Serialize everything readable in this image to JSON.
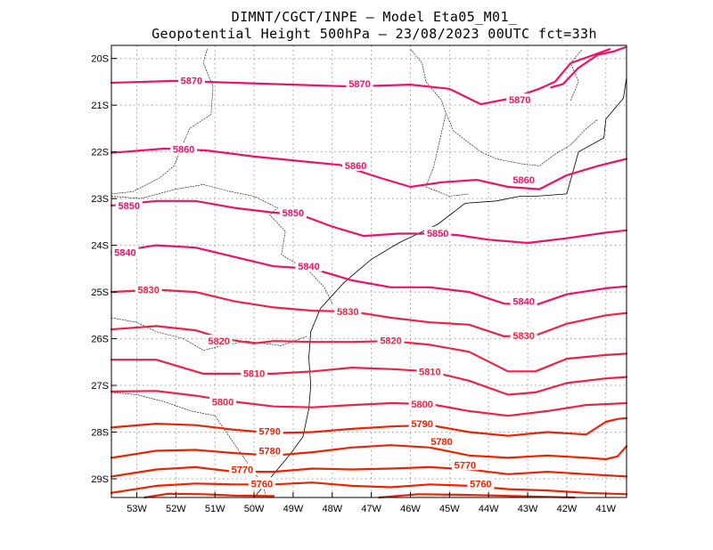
{
  "title": {
    "line1": "DIMNT/CGCT/INPE –  Model Eta05_M01_",
    "line2": "Geopotential Height 500hPa –  23/08/2023 00UTC fct=33h"
  },
  "map": {
    "lon_range": [
      -53.65,
      -40.47
    ],
    "lat_range": [
      -29.4,
      -19.72
    ],
    "lon_ticks": [
      "53W",
      "52W",
      "51W",
      "50W",
      "49W",
      "48W",
      "47W",
      "46W",
      "45W",
      "44W",
      "43W",
      "42W",
      "41W"
    ],
    "lat_ticks": [
      "20S",
      "21S",
      "22S",
      "23S",
      "24S",
      "25S",
      "26S",
      "27S",
      "28S",
      "29S"
    ],
    "colors": {
      "high": "#ee1166",
      "mid": "#ee2244",
      "low": "#ee2200",
      "coast": "#000000",
      "grid": "#999999"
    }
  },
  "contours": [
    {
      "value": 5870,
      "label": "5870",
      "color": "#ee1166",
      "points": [
        [
          -53.65,
          -20.52
        ],
        [
          -52,
          -20.48
        ],
        [
          -50.5,
          -20.52
        ],
        [
          -49,
          -20.56
        ],
        [
          -47.5,
          -20.6
        ],
        [
          -46,
          -20.56
        ],
        [
          -45,
          -20.65
        ],
        [
          -44.2,
          -20.98
        ],
        [
          -43.4,
          -20.85
        ],
        [
          -42.7,
          -20.65
        ],
        [
          -42.3,
          -20.5
        ],
        [
          -41.9,
          -20.1
        ],
        [
          -41.4,
          -19.95
        ],
        [
          -40.9,
          -19.8
        ]
      ],
      "labels": [
        [
          -51.6,
          -20.47
        ],
        [
          -47.3,
          -20.54
        ],
        [
          -43.2,
          -20.88
        ]
      ]
    },
    {
      "value": 5870,
      "label": "",
      "color": "#ee1166",
      "points": [
        [
          -42.4,
          -20.62
        ],
        [
          -42.1,
          -20.55
        ],
        [
          -41.7,
          -20.2
        ],
        [
          -41.2,
          -19.92
        ],
        [
          -40.8,
          -19.85
        ],
        [
          -40.5,
          -19.76
        ]
      ],
      "labels": []
    },
    {
      "value": 5860,
      "label": "5860",
      "color": "#ee1166",
      "points": [
        [
          -53.65,
          -22.02
        ],
        [
          -52.3,
          -21.93
        ],
        [
          -51.2,
          -21.97
        ],
        [
          -50,
          -22.1
        ],
        [
          -48.8,
          -22.2
        ],
        [
          -47.8,
          -22.28
        ],
        [
          -46.8,
          -22.55
        ],
        [
          -46,
          -22.75
        ],
        [
          -45.2,
          -22.65
        ],
        [
          -44.3,
          -22.6
        ],
        [
          -43.5,
          -22.75
        ],
        [
          -42.7,
          -22.8
        ],
        [
          -42,
          -22.5
        ],
        [
          -41.2,
          -22.3
        ],
        [
          -40.47,
          -22.15
        ]
      ],
      "labels": [
        [
          -51.8,
          -21.94
        ],
        [
          -47.4,
          -22.29
        ],
        [
          -43.1,
          -22.6
        ]
      ]
    },
    {
      "value": 5850,
      "label": "5850",
      "color": "#ee1166",
      "points": [
        [
          -53.65,
          -23.15
        ],
        [
          -52.5,
          -23.05
        ],
        [
          -51.5,
          -23.05
        ],
        [
          -50.5,
          -23.2
        ],
        [
          -49.5,
          -23.3
        ],
        [
          -48.8,
          -23.35
        ],
        [
          -48,
          -23.6
        ],
        [
          -47.2,
          -23.8
        ],
        [
          -46.3,
          -23.75
        ],
        [
          -45.5,
          -23.75
        ],
        [
          -44.8,
          -23.78
        ],
        [
          -44,
          -23.88
        ],
        [
          -43,
          -23.95
        ],
        [
          -42,
          -23.85
        ],
        [
          -41,
          -23.73
        ],
        [
          -40.47,
          -23.68
        ]
      ],
      "labels": [
        [
          -53.2,
          -23.15
        ],
        [
          -49,
          -23.3
        ],
        [
          -45.3,
          -23.74
        ]
      ]
    },
    {
      "value": 5840,
      "label": "5840",
      "color": "#ee1166",
      "points": [
        [
          -53.65,
          -24.15
        ],
        [
          -52.5,
          -24.0
        ],
        [
          -51.5,
          -24.05
        ],
        [
          -50.5,
          -24.25
        ],
        [
          -49.5,
          -24.45
        ],
        [
          -48.5,
          -24.5
        ],
        [
          -47.5,
          -24.75
        ],
        [
          -46.5,
          -24.9
        ],
        [
          -45.5,
          -24.9
        ],
        [
          -44.5,
          -25.0
        ],
        [
          -43.6,
          -25.25
        ],
        [
          -42.8,
          -25.28
        ],
        [
          -42,
          -25.05
        ],
        [
          -41,
          -24.92
        ],
        [
          -40.47,
          -24.88
        ]
      ],
      "labels": [
        [
          -53.3,
          -24.15
        ],
        [
          -48.6,
          -24.45
        ],
        [
          -43.1,
          -25.2
        ]
      ]
    },
    {
      "value": 5830,
      "label": "5830",
      "color": "#ee2244",
      "points": [
        [
          -53.65,
          -25.0
        ],
        [
          -52.5,
          -24.95
        ],
        [
          -51.5,
          -25.0
        ],
        [
          -50.5,
          -25.2
        ],
        [
          -49.5,
          -25.33
        ],
        [
          -48.5,
          -25.4
        ],
        [
          -47.5,
          -25.42
        ],
        [
          -46.5,
          -25.55
        ],
        [
          -45.5,
          -25.65
        ],
        [
          -44.5,
          -25.7
        ],
        [
          -43.6,
          -25.95
        ],
        [
          -42.8,
          -25.93
        ],
        [
          -42,
          -25.68
        ],
        [
          -41,
          -25.5
        ],
        [
          -40.47,
          -25.45
        ]
      ],
      "labels": [
        [
          -52.7,
          -24.95
        ],
        [
          -47.6,
          -25.42
        ],
        [
          -43.1,
          -25.93
        ]
      ]
    },
    {
      "value": 5820,
      "label": "5820",
      "color": "#ee2244",
      "points": [
        [
          -53.65,
          -25.8
        ],
        [
          -52.5,
          -25.73
        ],
        [
          -51.5,
          -25.82
        ],
        [
          -50.8,
          -26.0
        ],
        [
          -50,
          -26.1
        ],
        [
          -49.5,
          -26.05
        ],
        [
          -48.5,
          -26.07
        ],
        [
          -47.5,
          -26.07
        ],
        [
          -46.5,
          -26.05
        ],
        [
          -45.5,
          -26.13
        ],
        [
          -44.5,
          -26.28
        ],
        [
          -43.5,
          -26.7
        ],
        [
          -42.8,
          -26.7
        ],
        [
          -42,
          -26.43
        ],
        [
          -41,
          -26.35
        ],
        [
          -40.47,
          -26.32
        ]
      ],
      "labels": [
        [
          -50.9,
          -26.05
        ],
        [
          -46.5,
          -26.04
        ]
      ]
    },
    {
      "value": 5810,
      "label": "5810",
      "color": "#ee2244",
      "points": [
        [
          -53.65,
          -26.45
        ],
        [
          -52.5,
          -26.45
        ],
        [
          -51.9,
          -26.6
        ],
        [
          -51.3,
          -26.75
        ],
        [
          -50.5,
          -26.75
        ],
        [
          -49.5,
          -26.75
        ],
        [
          -48.5,
          -26.7
        ],
        [
          -47.5,
          -26.62
        ],
        [
          -46.5,
          -26.65
        ],
        [
          -45.5,
          -26.7
        ],
        [
          -44.5,
          -26.9
        ],
        [
          -43.5,
          -27.2
        ],
        [
          -42.8,
          -27.15
        ],
        [
          -42,
          -26.95
        ],
        [
          -41,
          -26.85
        ],
        [
          -40.47,
          -26.82
        ]
      ],
      "labels": [
        [
          -50,
          -26.74
        ],
        [
          -45.5,
          -26.7
        ]
      ]
    },
    {
      "value": 5800,
      "label": "5800",
      "color": "#ee2244",
      "points": [
        [
          -53.65,
          -27.13
        ],
        [
          -52.5,
          -27.12
        ],
        [
          -51.5,
          -27.22
        ],
        [
          -50.5,
          -27.35
        ],
        [
          -49.5,
          -27.45
        ],
        [
          -48.5,
          -27.47
        ],
        [
          -47.5,
          -27.42
        ],
        [
          -46.5,
          -27.38
        ],
        [
          -45.5,
          -27.4
        ],
        [
          -44.5,
          -27.55
        ],
        [
          -43.5,
          -27.65
        ],
        [
          -42.5,
          -27.55
        ],
        [
          -41.5,
          -27.42
        ],
        [
          -40.47,
          -27.38
        ]
      ],
      "labels": [
        [
          -50.8,
          -27.35
        ],
        [
          -45.7,
          -27.4
        ]
      ]
    },
    {
      "value": 5790,
      "label": "5790",
      "color": "#ee2200",
      "points": [
        [
          -53.65,
          -27.9
        ],
        [
          -52.5,
          -27.82
        ],
        [
          -51.5,
          -27.85
        ],
        [
          -50.5,
          -27.95
        ],
        [
          -49.5,
          -28.02
        ],
        [
          -48.5,
          -28.0
        ],
        [
          -47.5,
          -27.93
        ],
        [
          -46.5,
          -27.88
        ],
        [
          -45.5,
          -27.85
        ],
        [
          -44.5,
          -28.0
        ],
        [
          -43.5,
          -28.08
        ],
        [
          -42.5,
          -28.0
        ],
        [
          -41.5,
          -28.05
        ],
        [
          -41.0,
          -27.78
        ],
        [
          -40.7,
          -27.72
        ],
        [
          -40.47,
          -27.7
        ]
      ],
      "labels": [
        [
          -49.6,
          -27.98
        ],
        [
          -45.7,
          -27.82
        ]
      ]
    },
    {
      "value": 5780,
      "label": "5780",
      "color": "#ee2200",
      "points": [
        [
          -53.65,
          -28.55
        ],
        [
          -52.5,
          -28.4
        ],
        [
          -51.5,
          -28.38
        ],
        [
          -50.5,
          -28.45
        ],
        [
          -49.5,
          -28.5
        ],
        [
          -48.5,
          -28.43
        ],
        [
          -47.5,
          -28.33
        ],
        [
          -46.5,
          -28.28
        ],
        [
          -45.5,
          -28.33
        ],
        [
          -44.5,
          -28.5
        ],
        [
          -43.5,
          -28.55
        ],
        [
          -42.5,
          -28.5
        ],
        [
          -41.5,
          -28.55
        ],
        [
          -41.0,
          -28.58
        ],
        [
          -40.7,
          -28.52
        ],
        [
          -40.47,
          -28.3
        ]
      ],
      "labels": [
        [
          -49.6,
          -28.4
        ],
        [
          -45.2,
          -28.2
        ]
      ]
    },
    {
      "value": 5770,
      "label": "5770",
      "color": "#ee2200",
      "points": [
        [
          -53.65,
          -28.95
        ],
        [
          -52.5,
          -28.8
        ],
        [
          -51.5,
          -28.75
        ],
        [
          -50.5,
          -28.85
        ],
        [
          -49.5,
          -28.85
        ],
        [
          -48.5,
          -28.78
        ],
        [
          -47.5,
          -28.8
        ],
        [
          -46.5,
          -28.78
        ],
        [
          -45.5,
          -28.75
        ],
        [
          -44.5,
          -28.8
        ],
        [
          -43.5,
          -28.9
        ],
        [
          -42.5,
          -28.85
        ],
        [
          -41.5,
          -28.9
        ],
        [
          -40.47,
          -28.95
        ]
      ],
      "labels": [
        [
          -50.3,
          -28.8
        ],
        [
          -44.6,
          -28.7
        ]
      ]
    },
    {
      "value": 5760,
      "label": "5760",
      "color": "#ee2200",
      "points": [
        [
          -53.65,
          -29.3
        ],
        [
          -52.5,
          -29.15
        ],
        [
          -51.5,
          -29.1
        ],
        [
          -50.5,
          -29.12
        ],
        [
          -49.5,
          -29.12
        ],
        [
          -48.5,
          -29.08
        ],
        [
          -47.5,
          -29.15
        ],
        [
          -46.5,
          -29.18
        ],
        [
          -45.5,
          -29.12
        ],
        [
          -44.5,
          -29.15
        ],
        [
          -43.5,
          -29.22
        ],
        [
          -42.5,
          -29.25
        ],
        [
          -41.5,
          -29.3
        ],
        [
          -40.47,
          -29.33
        ]
      ],
      "labels": [
        [
          -49.8,
          -29.1
        ],
        [
          -44.2,
          -29.1
        ]
      ]
    },
    {
      "value": 5750,
      "label": "",
      "color": "#ee2200",
      "points": [
        [
          -52.8,
          -29.4
        ],
        [
          -52.2,
          -29.32
        ],
        [
          -51.3,
          -29.33
        ],
        [
          -50.5,
          -29.36
        ],
        [
          -49.5,
          -29.37
        ]
      ],
      "labels": []
    },
    {
      "value": 5750,
      "label": "",
      "color": "#ee2200",
      "points": [
        [
          -46.8,
          -29.4
        ],
        [
          -45.8,
          -29.33
        ],
        [
          -44.8,
          -29.34
        ],
        [
          -43.8,
          -29.36
        ],
        [
          -42.8,
          -29.38
        ],
        [
          -41.8,
          -29.4
        ]
      ],
      "labels": []
    }
  ],
  "coast": [
    [
      -40.47,
      -20.4
    ],
    [
      -40.55,
      -20.85
    ],
    [
      -41.0,
      -21.3
    ],
    [
      -41.05,
      -21.7
    ],
    [
      -41.7,
      -22.0
    ],
    [
      -42.0,
      -22.9
    ],
    [
      -42.8,
      -22.95
    ],
    [
      -43.2,
      -22.95
    ],
    [
      -43.8,
      -23.05
    ],
    [
      -44.6,
      -23.1
    ],
    [
      -45.3,
      -23.55
    ],
    [
      -46.3,
      -23.95
    ],
    [
      -47.0,
      -24.3
    ],
    [
      -47.7,
      -24.8
    ],
    [
      -48.3,
      -25.35
    ],
    [
      -48.55,
      -25.85
    ],
    [
      -48.6,
      -26.4
    ],
    [
      -48.55,
      -27.0
    ],
    [
      -48.6,
      -27.5
    ],
    [
      -48.75,
      -28.1
    ],
    [
      -49.1,
      -28.5
    ],
    [
      -49.6,
      -29.0
    ],
    [
      -50.0,
      -29.4
    ]
  ],
  "borders": [
    [
      [
        -51.2,
        -19.8
      ],
      [
        -51.3,
        -20.1
      ],
      [
        -51.05,
        -20.6
      ],
      [
        -51.1,
        -21.2
      ],
      [
        -51.65,
        -21.5
      ],
      [
        -52.05,
        -22.3
      ],
      [
        -52.4,
        -22.55
      ],
      [
        -53.1,
        -22.85
      ],
      [
        -53.65,
        -22.9
      ]
    ],
    [
      [
        -53.65,
        -22.95
      ],
      [
        -52.9,
        -23.0
      ],
      [
        -52.0,
        -22.8
      ],
      [
        -51.3,
        -22.7
      ],
      [
        -50.6,
        -22.85
      ],
      [
        -50.0,
        -22.95
      ],
      [
        -49.4,
        -23.2
      ],
      [
        -49.6,
        -23.35
      ],
      [
        -49.2,
        -23.7
      ],
      [
        -49.3,
        -24.2
      ],
      [
        -48.6,
        -24.55
      ],
      [
        -48.2,
        -24.9
      ],
      [
        -48.0,
        -25.25
      ]
    ],
    [
      [
        -53.65,
        -25.55
      ],
      [
        -53.0,
        -25.65
      ],
      [
        -52.5,
        -25.85
      ],
      [
        -51.8,
        -26.0
      ],
      [
        -51.3,
        -26.25
      ],
      [
        -50.8,
        -26.15
      ],
      [
        -50.2,
        -26.05
      ],
      [
        -49.3,
        -26.15
      ],
      [
        -48.65,
        -25.95
      ]
    ],
    [
      [
        -53.65,
        -27.15
      ],
      [
        -53.0,
        -27.2
      ],
      [
        -52.3,
        -27.35
      ],
      [
        -51.6,
        -27.55
      ],
      [
        -51.0,
        -27.65
      ],
      [
        -50.3,
        -28.5
      ],
      [
        -49.8,
        -29.1
      ],
      [
        -49.7,
        -29.35
      ]
    ],
    [
      [
        -46.0,
        -19.8
      ],
      [
        -45.7,
        -20.1
      ],
      [
        -45.6,
        -20.5
      ],
      [
        -45.2,
        -20.9
      ],
      [
        -45.1,
        -21.15
      ],
      [
        -44.9,
        -21.55
      ],
      [
        -44.2,
        -22.0
      ],
      [
        -43.8,
        -22.15
      ],
      [
        -43.2,
        -22.25
      ],
      [
        -42.7,
        -22.3
      ],
      [
        -42.3,
        -22.05
      ],
      [
        -41.9,
        -21.85
      ],
      [
        -41.5,
        -21.5
      ],
      [
        -41.2,
        -21.3
      ]
    ],
    [
      [
        -45.1,
        -21.2
      ],
      [
        -45.4,
        -22.3
      ],
      [
        -45.6,
        -22.75
      ],
      [
        -45.0,
        -22.95
      ],
      [
        -44.5,
        -22.9
      ]
    ],
    [
      [
        -41.9,
        -20.9
      ],
      [
        -41.7,
        -20.5
      ],
      [
        -41.9,
        -20.1
      ],
      [
        -41.6,
        -19.8
      ]
    ]
  ]
}
